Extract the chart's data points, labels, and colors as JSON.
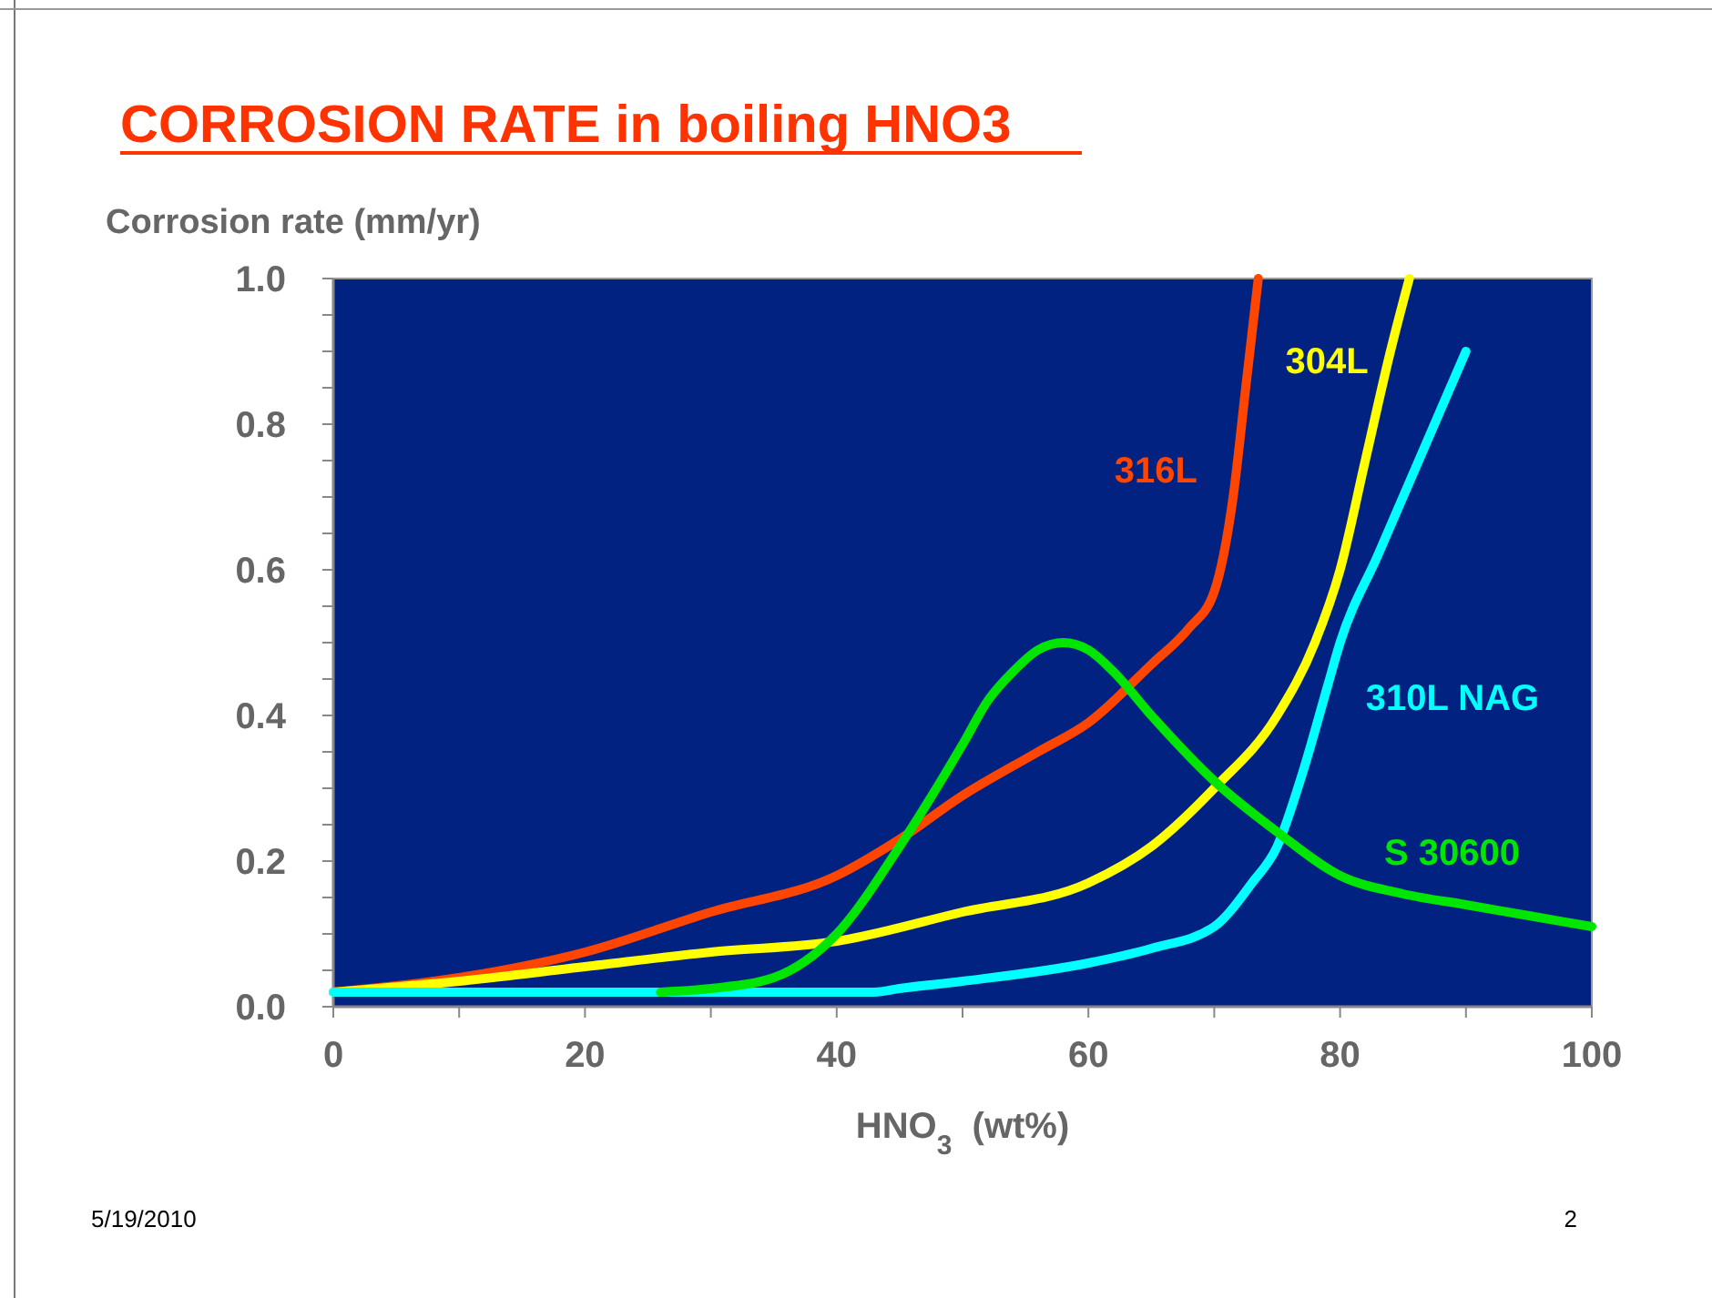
{
  "chart_data": {
    "type": "line",
    "title": "CORROSION RATE in boiling HNO3",
    "ylabel": "Corrosion rate (mm/yr)",
    "xlabel": "HNO$_{3}$  (wt%)",
    "xlim": [
      0,
      100
    ],
    "xticks": [
      0,
      {
        "value": 10,
        "label": null
      },
      20,
      {
        "value": 30,
        "label": null
      },
      40,
      {
        "value": 50,
        "label": null
      },
      60,
      {
        "value": 70,
        "label": null
      },
      80,
      {
        "value": 90,
        "label": null
      },
      100
    ],
    "ylim": [
      0,
      1
    ],
    "yticks": [
      {
        "value": 0,
        "label": "0.0"
      },
      {
        "value": 0.05,
        "label": null
      },
      {
        "value": 0.1,
        "label": null
      },
      {
        "value": 0.15,
        "label": null
      },
      {
        "value": 0.2,
        "label": "0.2"
      },
      {
        "value": 0.25,
        "label": null
      },
      {
        "value": 0.3,
        "label": null
      },
      {
        "value": 0.35,
        "label": null
      },
      {
        "value": 0.4,
        "label": "0.4"
      },
      {
        "value": 0.45,
        "label": null
      },
      {
        "value": 0.5,
        "label": null
      },
      {
        "value": 0.55,
        "label": null
      },
      {
        "value": 0.6,
        "label": "0.6"
      },
      {
        "value": 0.65,
        "label": null
      },
      {
        "value": 0.7,
        "label": null
      },
      {
        "value": 0.75,
        "label": null
      },
      {
        "value": 0.8,
        "label": "0.8"
      },
      {
        "value": 0.85,
        "label": null
      },
      {
        "value": 0.9,
        "label": null
      },
      {
        "value": 0.95,
        "label": null
      },
      {
        "value": 1,
        "label": "1.0"
      }
    ],
    "grid": false,
    "marker": "none",
    "line_style": "solid",
    "series": [
      {
        "name": "316L",
        "color": "#ff4500",
        "x": [
          0,
          10,
          20,
          30,
          40,
          45,
          50,
          56,
          60,
          65,
          68,
          70,
          71.5,
          72.5,
          73.5
        ],
        "values": [
          0.02,
          0.04,
          0.075,
          0.13,
          0.18,
          0.23,
          0.29,
          0.35,
          0.39,
          0.47,
          0.52,
          0.57,
          0.7,
          0.85,
          1.0
        ]
      },
      {
        "name": "304L",
        "color": "#ffff00",
        "x": [
          0,
          10,
          20,
          30,
          40,
          50,
          60,
          65,
          70,
          75,
          78,
          80,
          82,
          84,
          85.5
        ],
        "values": [
          0.02,
          0.035,
          0.055,
          0.075,
          0.09,
          0.13,
          0.17,
          0.22,
          0.3,
          0.4,
          0.5,
          0.6,
          0.75,
          0.9,
          1.0
        ]
      },
      {
        "name": "310L NAG",
        "color": "#00ffff",
        "x": [
          0,
          20,
          43,
          45,
          50,
          60,
          65,
          70,
          73,
          75,
          77,
          79,
          80,
          83,
          86,
          90
        ],
        "values": [
          0.02,
          0.02,
          0.02,
          0.025,
          0.035,
          0.06,
          0.08,
          0.11,
          0.17,
          0.22,
          0.32,
          0.44,
          0.5,
          0.62,
          0.74,
          0.9
        ]
      },
      {
        "name": "S 30600",
        "color": "#00e600",
        "x": [
          26,
          30,
          35,
          40,
          45,
          50,
          52,
          54,
          56,
          58,
          60,
          62,
          65,
          70,
          75,
          80,
          85,
          90,
          95,
          100
        ],
        "values": [
          0.02,
          0.025,
          0.04,
          0.1,
          0.22,
          0.36,
          0.42,
          0.46,
          0.49,
          0.5,
          0.49,
          0.46,
          0.4,
          0.31,
          0.24,
          0.18,
          0.155,
          0.14,
          0.125,
          0.11
        ]
      }
    ],
    "annotations": [
      "5/19/2010",
      "2"
    ]
  }
}
